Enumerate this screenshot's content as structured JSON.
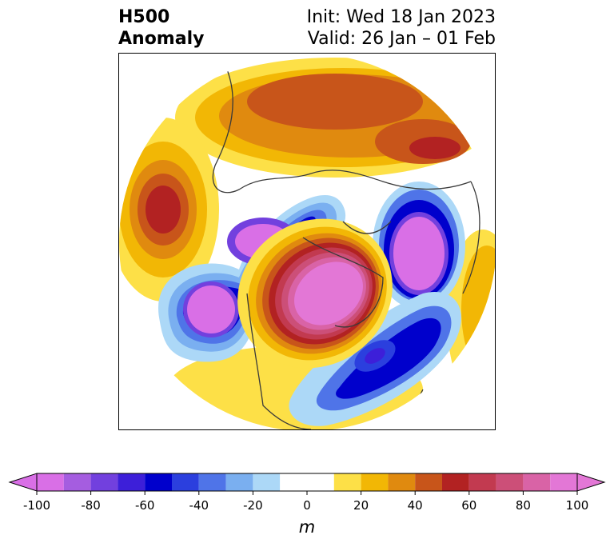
{
  "title": {
    "left_line1": "H500",
    "left_line2": "Anomaly",
    "right_line1": "Init: Wed 18 Jan 2023",
    "right_line2": "Valid: 26 Jan – 01 Feb"
  },
  "map": {
    "projection": "north-polar-stereographic",
    "field": "500 hPa geopotential height anomaly",
    "features": [
      {
        "label": "Ridge over Greenland / Canadian Arctic",
        "sign": "positive",
        "peak_m": 60
      },
      {
        "label": "Trough over Bering Sea / Alaska",
        "sign": "negative",
        "peak_m": -100
      },
      {
        "label": "Trough over eastern Siberia",
        "sign": "negative",
        "peak_m": -100
      },
      {
        "label": "Trough over Scandinavia / northern Europe",
        "sign": "negative",
        "peak_m": -100
      },
      {
        "label": "Trough over eastern North Atlantic",
        "sign": "negative",
        "peak_m": -70
      },
      {
        "label": "Ridge over central Asia / Siberia",
        "sign": "positive",
        "peak_m": 60
      },
      {
        "label": "Ridge over North Pacific",
        "sign": "positive",
        "peak_m": 60
      },
      {
        "label": "Ridge over western/central US",
        "sign": "positive",
        "peak_m": 20
      }
    ]
  },
  "colorbar": {
    "unit": "m",
    "extend": "both",
    "tick_labels": [
      "-100",
      "-80",
      "-60",
      "-40",
      "-20",
      "0",
      "20",
      "40",
      "60",
      "80",
      "100"
    ],
    "bounds": [
      -100,
      -90,
      -80,
      -70,
      -60,
      -50,
      -40,
      -30,
      -20,
      -10,
      10,
      20,
      30,
      40,
      50,
      60,
      70,
      80,
      90,
      100
    ],
    "colors": [
      "#d96fe6",
      "#a55de0",
      "#7240de",
      "#3d1fd9",
      "#0000cc",
      "#2b3fde",
      "#4f74e8",
      "#7aaff0",
      "#acd8f7",
      "#ffffff",
      "#fde047",
      "#f2b705",
      "#e08a0f",
      "#c8551a",
      "#b22222",
      "#c23a50",
      "#cc4f78",
      "#d963a6",
      "#e377d6"
    ],
    "under_color": "#d96fe6",
    "over_color": "#e377d6"
  }
}
